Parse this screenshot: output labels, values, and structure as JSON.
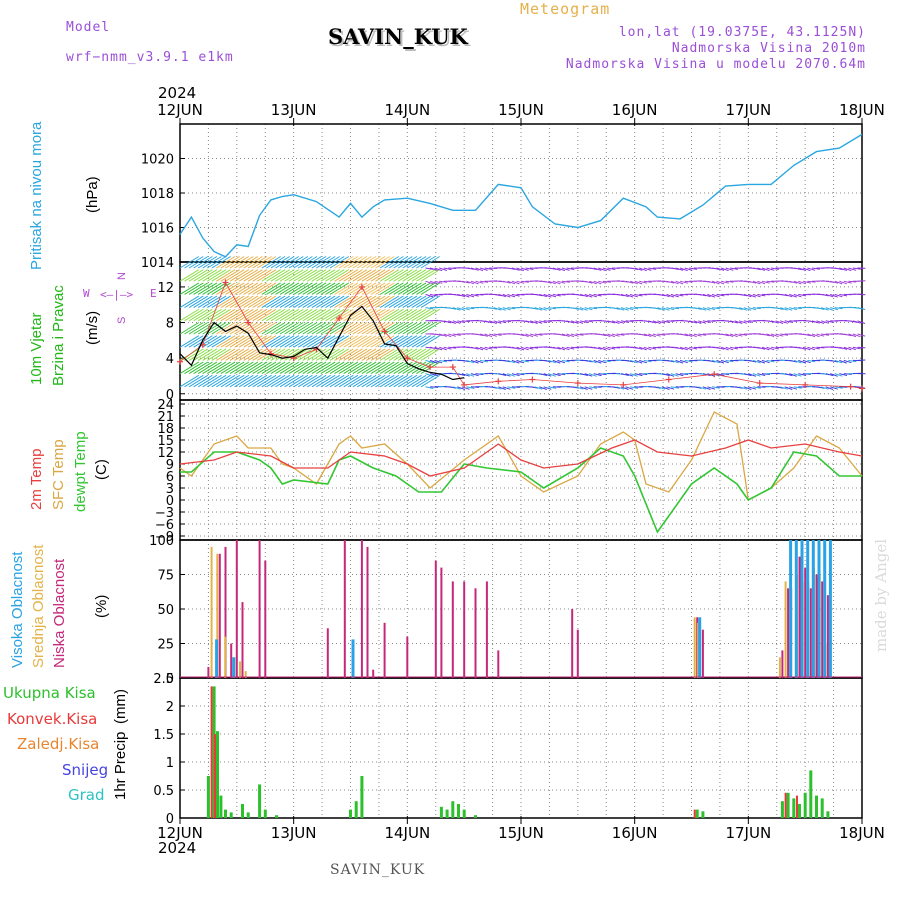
{
  "header": {
    "model_label": "Model",
    "model_name": "wrf−nmm_v3.9.1  e1km",
    "station_title": "SAVIN_KUK",
    "meteogram_label": "Meteogram",
    "lonlat": "lon,lat (19.0375E, 43.1125N)",
    "elevation": "Nadmorska Visina 2010m",
    "model_elevation": "Nadmorska Visina u modelu 2070.64m",
    "year_top": "2024",
    "year_bottom": "2024",
    "footer_station": "SAVIN_KUK",
    "watermark": "made by Angel"
  },
  "colors": {
    "pressure": "#2aa6e0",
    "wind_label": "#22b818",
    "temp2m": "#e84040",
    "sfc": "#d9a843",
    "dewpt": "#33c633",
    "high_cloud": "#29a3e6",
    "mid_cloud": "#e3b349",
    "low_cloud": "#c4287a",
    "total_precip": "#2cc02c",
    "conv_precip": "#e83a3a",
    "frozen": "#e8862e",
    "snow": "#4545e0",
    "hail": "#2cc2c2",
    "compass": "#b04ad0"
  },
  "chart_data": [
    {
      "type": "line",
      "panel": "pressure",
      "ylabel_name": "Pritisak na nivou mora",
      "ylabel_unit": "(hPa)",
      "x_ticks": [
        "12JUN",
        "13JUN",
        "14JUN",
        "15JUN",
        "16JUN",
        "17JUN",
        "18JUN"
      ],
      "xlim": [
        0,
        6
      ],
      "ylim": [
        1014,
        1022
      ],
      "y_ticks": [
        1014,
        1016,
        1018,
        1020
      ],
      "grid": true,
      "series": [
        {
          "x": [
            0,
            0.1,
            0.2,
            0.3,
            0.4,
            0.5,
            0.6,
            0.7,
            0.8,
            0.9,
            1.0,
            1.2,
            1.4,
            1.5,
            1.6,
            1.7,
            1.8,
            2.0,
            2.2,
            2.4,
            2.6,
            2.8,
            3.0,
            3.1,
            3.3,
            3.5,
            3.7,
            3.9,
            4.1,
            4.2,
            4.4,
            4.6,
            4.8,
            5.0,
            5.2,
            5.4,
            5.6,
            5.8,
            6.0
          ],
          "y": [
            1015.6,
            1016.6,
            1015.4,
            1014.6,
            1014.3,
            1015.0,
            1014.9,
            1016.7,
            1017.6,
            1017.8,
            1017.9,
            1017.5,
            1016.6,
            1017.4,
            1016.6,
            1017.2,
            1017.6,
            1017.7,
            1017.4,
            1017.0,
            1017.0,
            1018.5,
            1018.3,
            1017.2,
            1016.2,
            1016.0,
            1016.4,
            1017.7,
            1017.2,
            1016.6,
            1016.5,
            1017.3,
            1018.4,
            1018.5,
            1018.5,
            1019.6,
            1020.4,
            1020.6,
            1021.4
          ]
        }
      ]
    },
    {
      "type": "line",
      "panel": "wind",
      "ylabel_name": "10m Vjetar",
      "ylabel_name2": "Brzina i Pravac",
      "ylabel_unit": "(m/s)",
      "compass_n": "N",
      "compass_w": "W",
      "compass_e": "E",
      "compass_s": "S",
      "xlim": [
        0,
        6
      ],
      "ylim": [
        -0.7,
        14.8
      ],
      "y_ticks": [
        0,
        4,
        8,
        12
      ],
      "grid": true,
      "series": [
        {
          "x": [
            0,
            0.1,
            0.2,
            0.3,
            0.4,
            0.5,
            0.6,
            0.7,
            0.8,
            0.9,
            1.0,
            1.1,
            1.2,
            1.3,
            1.4,
            1.5,
            1.6,
            1.7,
            1.8,
            1.9,
            2.0,
            2.1,
            2.2,
            2.3,
            2.4,
            2.5
          ],
          "y": [
            4.5,
            3.2,
            6.0,
            8.0,
            7.0,
            7.6,
            6.8,
            4.6,
            4.4,
            4.0,
            4.2,
            5.0,
            5.2,
            4.0,
            6.4,
            8.8,
            9.8,
            8.2,
            5.6,
            5.4,
            3.4,
            2.8,
            2.4,
            2.2,
            1.6,
            1.8
          ]
        },
        {
          "x": [
            0,
            0.2,
            0.4,
            0.6,
            0.8,
            1.0,
            1.2,
            1.4,
            1.6,
            1.8,
            2.0,
            2.2,
            2.4,
            2.5,
            2.8,
            3.1,
            3.5,
            3.9,
            4.3,
            4.7,
            5.1,
            5.5,
            5.9,
            6.0
          ],
          "y": [
            3.6,
            5.5,
            12.5,
            8.0,
            4.5,
            4.0,
            5.0,
            8.5,
            12.0,
            7.0,
            4.0,
            3.0,
            3.0,
            1.0,
            1.4,
            1.6,
            1.2,
            1.0,
            1.6,
            2.2,
            1.2,
            1.0,
            0.8,
            0.6
          ]
        }
      ]
    },
    {
      "type": "line",
      "panel": "temperature",
      "ylabel_name": "2m Temp",
      "ylabel_name2": "SFC Temp",
      "ylabel_name3": "dewpt Temp",
      "ylabel_unit": "(C)",
      "xlim": [
        0,
        6
      ],
      "ylim": [
        -10,
        25
      ],
      "y_ticks": [
        -9,
        -6,
        -3,
        0,
        3,
        6,
        9,
        12,
        15,
        18,
        21,
        24
      ],
      "grid": true,
      "series": [
        {
          "name": "2m Temp",
          "x": [
            0,
            0.3,
            0.5,
            0.8,
            1.0,
            1.3,
            1.5,
            1.8,
            2.0,
            2.2,
            2.5,
            2.8,
            3.0,
            3.2,
            3.5,
            3.8,
            4.0,
            4.2,
            4.5,
            4.8,
            5.0,
            5.2,
            5.5,
            5.8,
            6.0
          ],
          "y": [
            9,
            10,
            12,
            11,
            8,
            8,
            12,
            11,
            9,
            6,
            8,
            14,
            10,
            8,
            9,
            13,
            15,
            12,
            11,
            13,
            15,
            13,
            14,
            12,
            11
          ]
        },
        {
          "name": "SFC Temp",
          "x": [
            0,
            0.1,
            0.3,
            0.5,
            0.6,
            0.8,
            0.9,
            1.0,
            1.2,
            1.4,
            1.5,
            1.6,
            1.8,
            2.0,
            2.2,
            2.5,
            2.8,
            3.0,
            3.2,
            3.5,
            3.7,
            3.9,
            4.0,
            4.1,
            4.3,
            4.5,
            4.7,
            4.9,
            5.0,
            5.2,
            5.4,
            5.6,
            5.8,
            6.0
          ],
          "y": [
            8,
            6,
            14,
            16,
            13,
            13,
            9,
            8,
            4,
            14,
            16,
            13,
            14,
            9,
            3,
            10,
            16,
            6,
            2,
            6,
            14,
            17,
            15,
            4,
            2,
            10,
            22,
            19,
            0,
            3,
            8,
            16,
            13,
            6
          ]
        },
        {
          "name": "dewpt Temp",
          "x": [
            0,
            0.1,
            0.3,
            0.5,
            0.7,
            0.8,
            0.9,
            1.0,
            1.3,
            1.4,
            1.5,
            1.7,
            1.9,
            2.1,
            2.3,
            2.5,
            2.7,
            3.0,
            3.2,
            3.5,
            3.7,
            3.9,
            4.0,
            4.2,
            4.3,
            4.5,
            4.7,
            4.9,
            5.0,
            5.2,
            5.4,
            5.6,
            5.8,
            6.0
          ],
          "y": [
            7,
            7,
            12,
            12,
            10,
            8,
            4,
            5,
            4,
            10,
            11,
            8,
            6,
            2,
            2,
            9,
            8,
            7,
            3,
            8,
            13,
            11,
            6,
            -8,
            -4,
            4,
            8,
            4,
            0,
            3,
            12,
            11,
            6,
            6
          ]
        }
      ]
    },
    {
      "type": "bar",
      "panel": "clouds",
      "ylabel_name": "Visoka Oblacnost",
      "ylabel_name2": "Srednja Oblacnost",
      "ylabel_name3": "Niska Oblacnost",
      "ylabel_unit": "(%)",
      "xlim": [
        0,
        6
      ],
      "ylim": [
        0,
        100
      ],
      "y_ticks": [
        0,
        25,
        50,
        75,
        100
      ],
      "grid": true,
      "series": [
        {
          "name": "Niska Oblacnost",
          "x": [
            0.25,
            0.35,
            0.4,
            0.45,
            0.5,
            0.55,
            0.7,
            0.75,
            1.3,
            1.45,
            1.6,
            1.65,
            1.7,
            1.8,
            2.0,
            2.25,
            2.3,
            2.4,
            2.5,
            2.6,
            2.7,
            2.8,
            3.45,
            3.5,
            4.55,
            4.6,
            5.3,
            5.35,
            5.45,
            5.5,
            5.55,
            5.6,
            5.65,
            5.7
          ],
          "y": [
            8,
            90,
            95,
            25,
            100,
            55,
            100,
            85,
            36,
            100,
            100,
            95,
            6,
            40,
            30,
            85,
            80,
            70,
            70,
            65,
            70,
            20,
            50,
            35,
            44,
            35,
            20,
            65,
            88,
            80,
            65,
            75,
            70,
            60
          ]
        },
        {
          "name": "Srednja Oblacnost",
          "x": [
            0.3,
            0.35,
            0.42,
            0.5,
            0.55,
            0.6,
            4.55,
            4.58,
            5.3,
            5.35,
            5.4,
            5.45,
            5.5,
            5.55,
            5.6,
            5.65,
            5.7
          ],
          "y": [
            95,
            90,
            30,
            15,
            12,
            5,
            44,
            40,
            15,
            70,
            65,
            75,
            70,
            70,
            80,
            75,
            25
          ]
        },
        {
          "name": "Visoka Oblacnost",
          "x": [
            0.3,
            0.45,
            1.5,
            4.55,
            5.35,
            5.4,
            5.45,
            5.5,
            5.55,
            5.6,
            5.65,
            5.7
          ],
          "y": [
            28,
            15,
            28,
            44,
            100,
            100,
            100,
            100,
            100,
            100,
            100,
            100
          ]
        }
      ]
    },
    {
      "type": "bar",
      "panel": "precip",
      "ylabel_name": "1hr Precip",
      "ylabel_unit": "(mm)",
      "legend": [
        "Ukupna  Kisa",
        "Konvek.Kisa",
        "Zaledj.Kisa",
        "Snijeg",
        "Grad"
      ],
      "xlim": [
        0,
        6
      ],
      "ylim": [
        0,
        2.5
      ],
      "y_ticks": [
        0,
        0.5,
        1,
        1.5,
        2,
        2.5
      ],
      "y_tick_labels": [
        "0",
        "0.5",
        "1",
        "1.5",
        "2",
        "2.5"
      ],
      "grid": true,
      "series": [
        {
          "name": "Ukupna  Kisa",
          "x": [
            0.25,
            0.3,
            0.33,
            0.36,
            0.4,
            0.45,
            0.55,
            0.6,
            0.7,
            0.75,
            0.85,
            1.5,
            1.55,
            1.6,
            2.3,
            2.35,
            2.4,
            2.45,
            2.5,
            2.6,
            4.55,
            4.6,
            5.3,
            5.35,
            5.4,
            5.45,
            5.5,
            5.55,
            5.6,
            5.65,
            5.7
          ],
          "y": [
            0.75,
            2.35,
            1.55,
            0.4,
            0.15,
            0.1,
            0.25,
            0.1,
            0.6,
            0.15,
            0.05,
            0.15,
            0.3,
            0.75,
            0.2,
            0.15,
            0.3,
            0.25,
            0.15,
            0.05,
            0.15,
            0.12,
            0.3,
            0.45,
            0.35,
            0.25,
            0.45,
            0.85,
            0.4,
            0.35,
            0.12
          ]
        },
        {
          "name": "Konvek.Kisa",
          "x": [
            0.3,
            0.33,
            4.55,
            5.35,
            5.45
          ],
          "y": [
            2.35,
            1.5,
            0.15,
            0.45,
            0.4
          ]
        }
      ]
    }
  ]
}
